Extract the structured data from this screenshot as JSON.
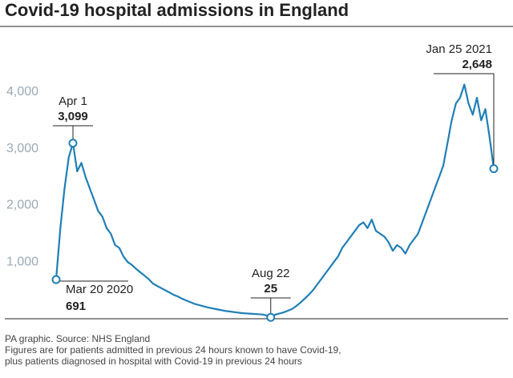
{
  "chart_data": {
    "type": "line",
    "title": "Covid-19 hospital admissions in England",
    "series": [
      {
        "color": "#1f7fb6",
        "values": [
          691,
          1600,
          2300,
          2850,
          3099,
          2600,
          2750,
          2500,
          2300,
          2100,
          1900,
          1800,
          1600,
          1500,
          1300,
          1250,
          1100,
          1000,
          950,
          880,
          820,
          760,
          700,
          620,
          580,
          540,
          500,
          460,
          420,
          390,
          350,
          320,
          290,
          260,
          240,
          220,
          200,
          185,
          170,
          155,
          140,
          130,
          120,
          110,
          100,
          95,
          90,
          85,
          80,
          75,
          60,
          25,
          70,
          90,
          110,
          140,
          170,
          220,
          280,
          350,
          420,
          500,
          600,
          700,
          800,
          900,
          1000,
          1100,
          1250,
          1350,
          1450,
          1550,
          1650,
          1700,
          1600,
          1750,
          1550,
          1500,
          1450,
          1350,
          1200,
          1300,
          1250,
          1150,
          1300,
          1400,
          1500,
          1700,
          1900,
          2100,
          2300,
          2500,
          2700,
          3100,
          3500,
          3800,
          3900,
          4134,
          3800,
          3600,
          3900,
          3500,
          3700,
          3200,
          2648
        ]
      }
    ],
    "ylim": [
      0,
      4600
    ],
    "yticks": [
      {
        "value": 1000,
        "label": "1,000"
      },
      {
        "value": 2000,
        "label": "2,000"
      },
      {
        "value": 3000,
        "label": "3,000"
      },
      {
        "value": 4000,
        "label": "4,000"
      }
    ],
    "annotations": [
      {
        "label": "Mar 20 2020",
        "value": 691,
        "value_label": "691"
      },
      {
        "label": "Apr 1",
        "value": 3099,
        "value_label": "3,099"
      },
      {
        "label": "Aug 22",
        "value": 25,
        "value_label": "25"
      },
      {
        "label": "Jan 25 2021",
        "value": 2648,
        "value_label": "2,648"
      }
    ],
    "footnotes": [
      "PA graphic. Source: NHS England",
      "Figures are for patients admitted in previous 24 hours known to have Covid-19,",
      "plus patients diagnosed in hospital with Covid-19 in previous 24 hours"
    ]
  }
}
